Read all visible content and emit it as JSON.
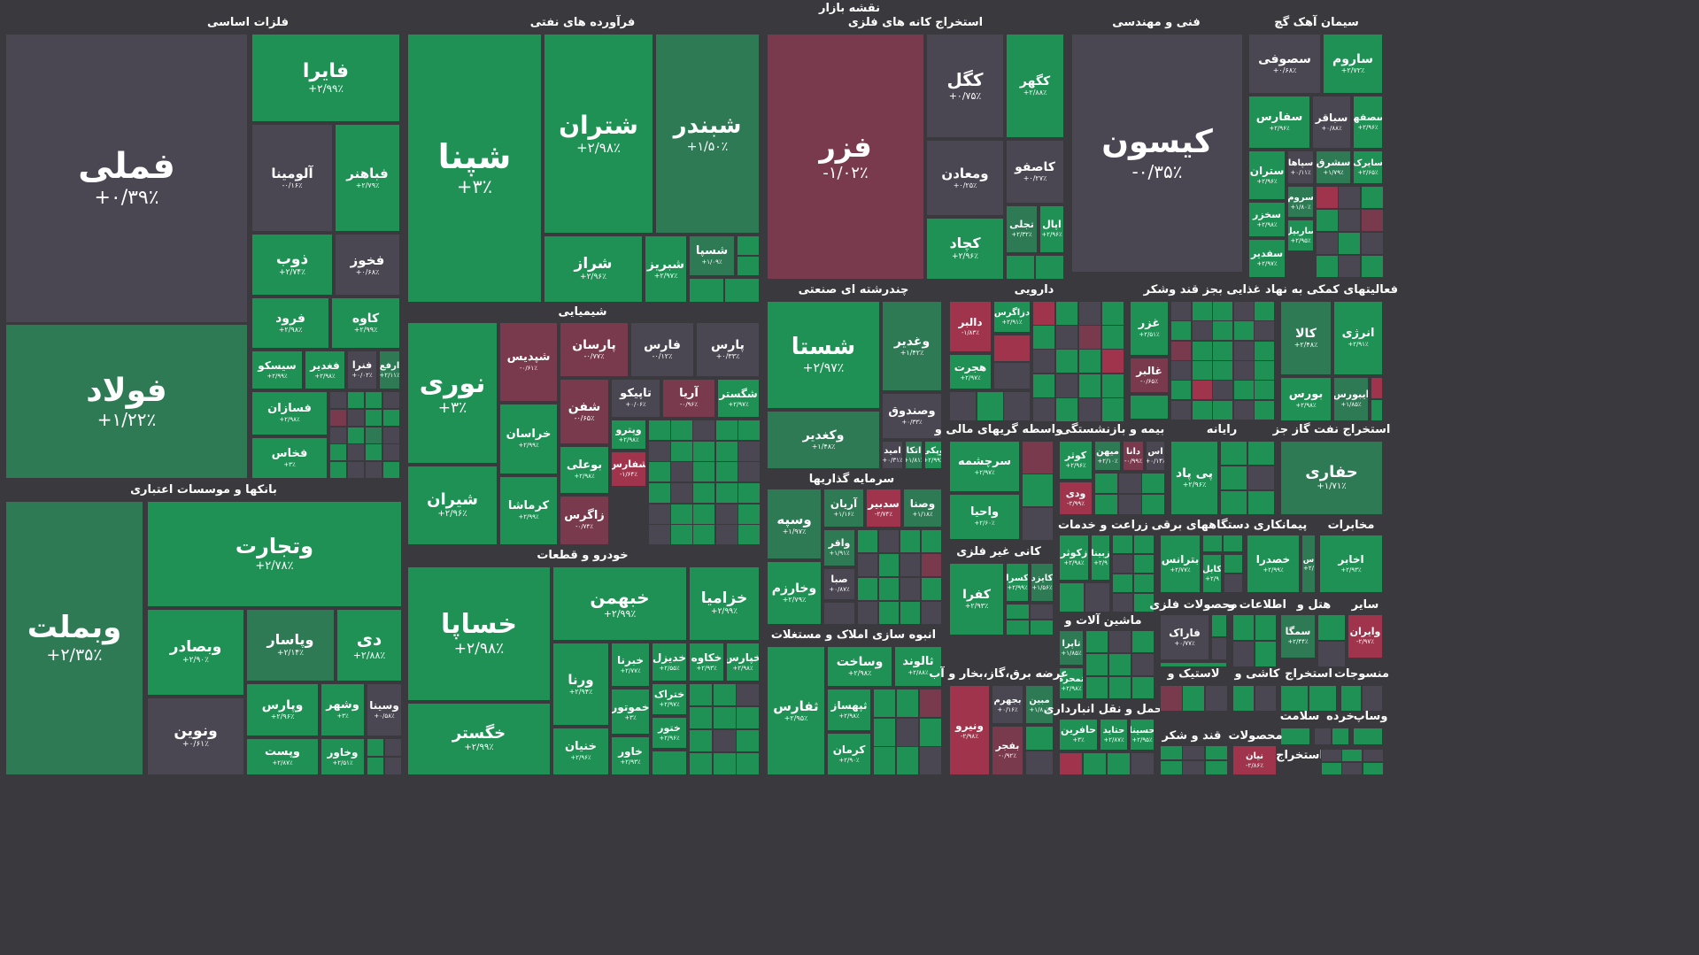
{
  "chart_data": {
    "type": "treemap",
    "title": "نقشه بازار",
    "sectors": [
      {
        "name": "فلزات اساسی",
        "items": [
          {
            "symbol": "فملی",
            "change": "+۰/۳۹٪",
            "value": 0.39
          },
          {
            "symbol": "فولاد",
            "change": "+۱/۲۲٪",
            "value": 1.22
          },
          {
            "symbol": "فایرا",
            "change": "+۲/۹۹٪",
            "value": 2.99
          },
          {
            "symbol": "آلومینا",
            "change": "-۰/۱۶٪",
            "value": -0.16
          },
          {
            "symbol": "فباهنر",
            "change": "+۲/۷۹٪",
            "value": 2.79
          },
          {
            "symbol": "ذوب",
            "change": "+۲/۷۴٪",
            "value": 2.74
          },
          {
            "symbol": "فخوز",
            "change": "+۰/۶۸٪",
            "value": 0.68
          },
          {
            "symbol": "فرود",
            "change": "+۲/۹۸٪",
            "value": 2.98
          },
          {
            "symbol": "کاوه",
            "change": "+۲/۹۹٪",
            "value": 2.99
          },
          {
            "symbol": "سیسکو",
            "change": "+۲/۹۹٪",
            "value": 2.99
          },
          {
            "symbol": "فغدیر",
            "change": "+۲/۹۸٪",
            "value": 2.98
          },
          {
            "symbol": "فنرا",
            "change": "+۰/۰۲٪",
            "value": 0.02
          },
          {
            "symbol": "ارفع",
            "change": "+۲/۱۱٪",
            "value": 2.11
          },
          {
            "symbol": "فسازان",
            "change": "+۲/۹۸٪",
            "value": 2.98
          },
          {
            "symbol": "فخاس",
            "change": "+۳٪",
            "value": 3
          }
        ]
      },
      {
        "name": "فرآورده های نفتی",
        "items": [
          {
            "symbol": "شپنا",
            "change": "+۳٪",
            "value": 3
          },
          {
            "symbol": "شتران",
            "change": "+۲/۹۸٪",
            "value": 2.98
          },
          {
            "symbol": "شبندر",
            "change": "+۱/۵۰٪",
            "value": 1.5
          },
          {
            "symbol": "شراز",
            "change": "+۲/۹۶٪",
            "value": 2.96
          },
          {
            "symbol": "شبریز",
            "change": "+۲/۹۷٪",
            "value": 2.97
          },
          {
            "symbol": "شسپا",
            "change": "+۱/۰۹٪",
            "value": 1.09
          }
        ]
      },
      {
        "name": "استخراج کانه های فلزی",
        "items": [
          {
            "symbol": "فزر",
            "change": "-۱/۰۲٪",
            "value": -1.02
          },
          {
            "symbol": "کگل",
            "change": "+۰/۷۵٪",
            "value": 0.75
          },
          {
            "symbol": "کگهر",
            "change": "+۲/۸۸٪",
            "value": 2.88
          },
          {
            "symbol": "ومعادن",
            "change": "+۰/۲۵٪",
            "value": 0.25
          },
          {
            "symbol": "کاصفو",
            "change": "+۰/۲۷٪",
            "value": 0.27
          },
          {
            "symbol": "کچاد",
            "change": "+۲/۹۶٪",
            "value": 2.96
          },
          {
            "symbol": "تجلی",
            "change": "+۲/۳۲٪",
            "value": 2.32
          },
          {
            "symbol": "اپال",
            "change": "+۲/۹۶٪",
            "value": 2.96
          }
        ]
      },
      {
        "name": "فنی و مهندسی",
        "items": [
          {
            "symbol": "کیسون",
            "change": "-۰/۳۵٪",
            "value": -0.35
          }
        ]
      },
      {
        "name": "سیمان آهک گچ",
        "items": [
          {
            "symbol": "سصوفی",
            "change": "+۰/۶۸٪",
            "value": 0.68
          },
          {
            "symbol": "ساروم",
            "change": "+۲/۷۲٪",
            "value": 2.72
          },
          {
            "symbol": "سفارس",
            "change": "+۲/۹۶٪",
            "value": 2.96
          },
          {
            "symbol": "سباقر",
            "change": "+۰/۸۸٪",
            "value": 0.88
          },
          {
            "symbol": "سصفها",
            "change": "+۲/۹۶٪",
            "value": 2.96
          },
          {
            "symbol": "ستران",
            "change": "+۲/۹۶٪",
            "value": 2.96
          },
          {
            "symbol": "سپاها",
            "change": "+۰/۱۱٪",
            "value": 0.11
          },
          {
            "symbol": "سشرق",
            "change": "+۱/۷۹٪",
            "value": 1.79
          },
          {
            "symbol": "سایرک",
            "change": "+۲/۶۵٪",
            "value": 2.65
          },
          {
            "symbol": "سروم",
            "change": "+۱/۸۰٪",
            "value": 1.8
          },
          {
            "symbol": "سخزر",
            "change": "+۲/۹۸٪",
            "value": 2.98
          },
          {
            "symbol": "ساربیل",
            "change": "+۲/۹۵٪",
            "value": 2.95
          },
          {
            "symbol": "سفدیر",
            "change": "+۲/۹۷٪",
            "value": 2.97
          }
        ]
      },
      {
        "name": "شیمیایی",
        "items": [
          {
            "symbol": "نوری",
            "change": "+۳٪",
            "value": 3
          },
          {
            "symbol": "شیران",
            "change": "+۲/۹۶٪",
            "value": 2.96
          },
          {
            "symbol": "شپدیس",
            "change": "-۰/۶۱٪",
            "value": -0.61
          },
          {
            "symbol": "پارسان",
            "change": "-۰/۷۷٪",
            "value": -0.77
          },
          {
            "symbol": "فارس",
            "change": "-۰/۱۲٪",
            "value": -0.12
          },
          {
            "symbol": "پارس",
            "change": "+۰/۳۳٪",
            "value": 0.33
          },
          {
            "symbol": "شفن",
            "change": "-۰/۶۵٪",
            "value": -0.65
          },
          {
            "symbol": "تاپیکو",
            "change": "+۰/۰۶٪",
            "value": 0.06
          },
          {
            "symbol": "آریا",
            "change": "-۰/۹۶٪",
            "value": -0.96
          },
          {
            "symbol": "شگستر",
            "change": "+۲/۹۷٪",
            "value": 2.97
          },
          {
            "symbol": "خراسان",
            "change": "+۲/۹۹٪",
            "value": 2.99
          },
          {
            "symbol": "وپترو",
            "change": "+۲/۹۸٪",
            "value": 2.98
          },
          {
            "symbol": "بوعلی",
            "change": "+۲/۹۸٪",
            "value": 2.98
          },
          {
            "symbol": "شفارس",
            "change": "-۱/۶۴٪",
            "value": -1.64
          },
          {
            "symbol": "کرماشا",
            "change": "+۲/۹۹٪",
            "value": 2.99
          },
          {
            "symbol": "زاگرس",
            "change": "-۰/۷۴٪",
            "value": -0.74
          }
        ]
      },
      {
        "name": "چندرشته ای صنعتی",
        "items": [
          {
            "symbol": "شستا",
            "change": "+۲/۹۷٪",
            "value": 2.97
          },
          {
            "symbol": "وغدیر",
            "change": "+۱/۴۲٪",
            "value": 1.42
          },
          {
            "symbol": "وصندوق",
            "change": "+۰/۳۳٪",
            "value": 0.33
          },
          {
            "symbol": "وکغدیر",
            "change": "+۱/۴۸٪",
            "value": 1.48
          },
          {
            "symbol": "امید",
            "change": "+۰/۳۱٪",
            "value": 0.31
          },
          {
            "symbol": "اتکا",
            "change": "+۱/۸۱٪",
            "value": 1.81
          },
          {
            "symbol": "وپکی",
            "change": "+۲/۹۹٪",
            "value": 2.99
          }
        ]
      },
      {
        "name": "دارویی",
        "items": [
          {
            "symbol": "دالبر",
            "change": "-۱/۸۳٪",
            "value": -1.83
          },
          {
            "symbol": "دزاگرس",
            "change": "+۲/۹۱٪",
            "value": 2.91
          },
          {
            "symbol": "هجرت",
            "change": "+۲/۹۷٪",
            "value": 2.97
          }
        ]
      },
      {
        "name": "غذایی بجز قند وشکر",
        "items": [
          {
            "symbol": "غزر",
            "change": "+۲/۵۱٪",
            "value": 2.51
          },
          {
            "symbol": "غالبر",
            "change": "-۰/۶۵٪",
            "value": -0.65
          }
        ]
      },
      {
        "name": "فعالیتهای کمکی به نهاد",
        "items": [
          {
            "symbol": "کالا",
            "change": "+۲/۴۸٪",
            "value": 2.48
          },
          {
            "symbol": "انرژی",
            "change": "+۲/۹۱٪",
            "value": 2.91
          },
          {
            "symbol": "بورس",
            "change": "+۲/۹۸٪",
            "value": 2.98
          },
          {
            "symbol": "ایبورس",
            "change": "+۱/۸۵٪",
            "value": 1.85
          }
        ]
      },
      {
        "name": "بانکها و موسسات اعتباری",
        "items": [
          {
            "symbol": "وبملت",
            "change": "+۲/۳۵٪",
            "value": 2.35
          },
          {
            "symbol": "وتجارت",
            "change": "+۲/۷۸٪",
            "value": 2.78
          },
          {
            "symbol": "وبصادر",
            "change": "+۲/۹۰٪",
            "value": 2.9
          },
          {
            "symbol": "وپاسار",
            "change": "+۲/۱۴٪",
            "value": 2.14
          },
          {
            "symbol": "دی",
            "change": "+۲/۸۸٪",
            "value": 2.88
          },
          {
            "symbol": "ونوین",
            "change": "+۰/۶۱٪",
            "value": 0.61
          },
          {
            "symbol": "وپارس",
            "change": "+۲/۹۶٪",
            "value": 2.96
          },
          {
            "symbol": "وشهر",
            "change": "+۳٪",
            "value": 3
          },
          {
            "symbol": "وسینا",
            "change": "+۰/۵۸٪",
            "value": 0.58
          },
          {
            "symbol": "وپست",
            "change": "+۲/۸۷٪",
            "value": 2.87
          },
          {
            "symbol": "وخاور",
            "change": "+۲/۵۱٪",
            "value": 2.51
          }
        ]
      },
      {
        "name": "خودرو و قطعات",
        "items": [
          {
            "symbol": "خساپا",
            "change": "+۲/۹۸٪",
            "value": 2.98
          },
          {
            "symbol": "خبهمن",
            "change": "+۲/۹۹٪",
            "value": 2.99
          },
          {
            "symbol": "خزامیا",
            "change": "+۲/۹۹٪",
            "value": 2.99
          },
          {
            "symbol": "خگستر",
            "change": "+۲/۹۹٪",
            "value": 2.99
          },
          {
            "symbol": "ورنا",
            "change": "+۲/۹۴٪",
            "value": 2.94
          },
          {
            "symbol": "خبرنا",
            "change": "+۲/۷۷٪",
            "value": 2.77
          },
          {
            "symbol": "خدیزل",
            "change": "+۲/۵۵٪",
            "value": 2.55
          },
          {
            "symbol": "خکاوه",
            "change": "+۲/۹۳٪",
            "value": 2.93
          },
          {
            "symbol": "خپارس",
            "change": "+۲/۹۸٪",
            "value": 2.98
          },
          {
            "symbol": "خموتور",
            "change": "+۳٪",
            "value": 3
          },
          {
            "symbol": "ختراک",
            "change": "+۲/۹۷٪",
            "value": 2.97
          },
          {
            "symbol": "ختور",
            "change": "+۲/۹۶٪",
            "value": 2.96
          },
          {
            "symbol": "خنیان",
            "change": "+۲/۹۶٪",
            "value": 2.96
          },
          {
            "symbol": "خاور",
            "change": "+۲/۹۳٪",
            "value": 2.93
          }
        ]
      },
      {
        "name": "سرمایه گذاریها",
        "items": [
          {
            "symbol": "وسپه",
            "change": "+۱/۹۷٪",
            "value": 1.97
          },
          {
            "symbol": "آریان",
            "change": "+۱/۱۶٪",
            "value": 1.16
          },
          {
            "symbol": "سدبیر",
            "change": "-۲/۷۴٪",
            "value": -2.74
          },
          {
            "symbol": "وصنا",
            "change": "+۱/۱۸٪",
            "value": 1.18
          },
          {
            "symbol": "واقر",
            "change": "+۱/۹۱٪",
            "value": 1.91
          },
          {
            "symbol": "وخارزم",
            "change": "+۲/۷۹٪",
            "value": 2.79
          },
          {
            "symbol": "صبا",
            "change": "+۰/۸۷٪",
            "value": 0.87
          }
        ]
      },
      {
        "name": "انبوه سازی املاک و مستغلات",
        "items": [
          {
            "symbol": "ثفارس",
            "change": "+۲/۹۵٪",
            "value": 2.95
          },
          {
            "symbol": "وساخت",
            "change": "+۲/۹۸٪",
            "value": 2.98
          },
          {
            "symbol": "ثالوند",
            "change": "+۲/۸۸٪",
            "value": 2.88
          },
          {
            "symbol": "ثپهساز",
            "change": "+۲/۹۸٪",
            "value": 2.98
          },
          {
            "symbol": "کرمان",
            "change": "+۲/۹۰٪",
            "value": 2.9
          }
        ]
      },
      {
        "name": "واسطه گریهای مالی و",
        "items": [
          {
            "symbol": "سرچشمه",
            "change": "+۲/۹۷٪",
            "value": 2.97
          },
          {
            "symbol": "واحیا",
            "change": "+۲/۶۰٪",
            "value": 2.6
          }
        ]
      },
      {
        "name": "بیمه و بازنشستگی",
        "items": [
          {
            "symbol": "کوثر",
            "change": "+۲/۹۶٪",
            "value": 2.96
          },
          {
            "symbol": "میهن",
            "change": "+۲/۱۰٪",
            "value": 2.1
          },
          {
            "symbol": "دانا",
            "change": "-۰/۹۹٪",
            "value": -0.99
          },
          {
            "symbol": "اس",
            "change": "+۰/۱۴٪",
            "value": 0.14
          },
          {
            "symbol": "ودی",
            "change": "-۲/۹۹٪",
            "value": -2.99
          }
        ]
      },
      {
        "name": "رایانه",
        "items": [
          {
            "symbol": "پی پاد",
            "change": "+۲/۹۶٪",
            "value": 2.96
          }
        ]
      },
      {
        "name": "استخراج نفت گاز جز",
        "items": [
          {
            "symbol": "حفاری",
            "change": "+۱/۷۱٪",
            "value": 1.71
          }
        ]
      },
      {
        "name": "کانی غیر فلزی",
        "items": [
          {
            "symbol": "کفرا",
            "change": "+۲/۹۳٪",
            "value": 2.93
          },
          {
            "symbol": "کسرا",
            "change": "+۲/۹۹٪",
            "value": 2.99
          },
          {
            "symbol": "کایزد",
            "change": "+۱/۵۶٪",
            "value": 1.56
          }
        ]
      },
      {
        "name": "عرضه برق،گاز،بخار و آب",
        "items": [
          {
            "symbol": "ونیرو",
            "change": "-۲/۹۸٪",
            "value": -2.98
          },
          {
            "symbol": "بجهرم",
            "change": "+۰/۱۶٪",
            "value": 0.16
          },
          {
            "symbol": "مبین",
            "change": "+۱/۸۰٪",
            "value": 1.8
          },
          {
            "symbol": "بفجر",
            "change": "-۰/۹۲٪",
            "value": -0.92
          }
        ]
      },
      {
        "name": "زراعت و خدمات",
        "items": [
          {
            "symbol": "زکوثر",
            "change": "+۲/۹۸٪",
            "value": 2.98
          },
          {
            "symbol": "زبینا",
            "change": "+۲/۹",
            "value": 2.9
          }
        ]
      },
      {
        "name": "ماشین آلات و",
        "items": [
          {
            "symbol": "تاپرا",
            "change": "+۱/۸۵٪",
            "value": 1.85
          },
          {
            "symbol": "تمحره",
            "change": "+۲/۹۸٪",
            "value": 2.98
          }
        ]
      },
      {
        "name": "حمل و نقل انبارداری",
        "items": [
          {
            "symbol": "حافرین",
            "change": "+۳٪",
            "value": 3
          },
          {
            "symbol": "حتاید",
            "change": "+۲/۸۷٪",
            "value": 2.87
          },
          {
            "symbol": "حسینا",
            "change": "+۲/۹۵٪",
            "value": 2.95
          }
        ]
      },
      {
        "name": "دستگاههای برقی",
        "items": [
          {
            "symbol": "بترانس",
            "change": "+۲/۷۷٪",
            "value": 2.77
          },
          {
            "symbol": "کابل",
            "change": "+۲/۹",
            "value": 2.9
          }
        ]
      },
      {
        "name": "پیمانکاری",
        "items": [
          {
            "symbol": "خصدرا",
            "change": "+۲/۹۹٪",
            "value": 2.99
          },
          {
            "symbol": "س",
            "change": "+۲/",
            "value": 2
          }
        ]
      },
      {
        "name": "مخابرات",
        "items": [
          {
            "symbol": "اخابر",
            "change": "+۲/۹۳٪",
            "value": 2.93
          }
        ]
      },
      {
        "name": "محصولات فلزی",
        "items": [
          {
            "symbol": "فاراک",
            "change": "+۰/۷۷٪",
            "value": 0.77
          }
        ]
      },
      {
        "name": "اطلاعات و",
        "items": []
      },
      {
        "name": "هتل و",
        "items": [
          {
            "symbol": "سمگا",
            "change": "+۲/۴۴٪",
            "value": 2.44
          }
        ]
      },
      {
        "name": "سایر",
        "items": [
          {
            "symbol": "وایران",
            "change": "-۲/۹۷٪",
            "value": -2.97
          }
        ]
      },
      {
        "name": "لاستیک و",
        "items": []
      },
      {
        "name": "کاشی و",
        "items": []
      },
      {
        "name": "استخراج",
        "items": []
      },
      {
        "name": "منسوجات",
        "items": []
      },
      {
        "name": "سلامت",
        "items": []
      },
      {
        "name": "خرده",
        "items": []
      },
      {
        "name": "وساپ",
        "items": []
      },
      {
        "name": "قند و شکر",
        "items": []
      },
      {
        "name": "محصولات",
        "items": [
          {
            "symbol": "نیان",
            "change": "-۲/۸۶٪",
            "value": -2.86
          }
        ]
      },
      {
        "name": "استخراج",
        "items": []
      }
    ]
  },
  "colors": {
    "background": "#3a393d",
    "positive": "#1f9155",
    "neutral": "#4a4652",
    "negative": "#a0344c"
  }
}
